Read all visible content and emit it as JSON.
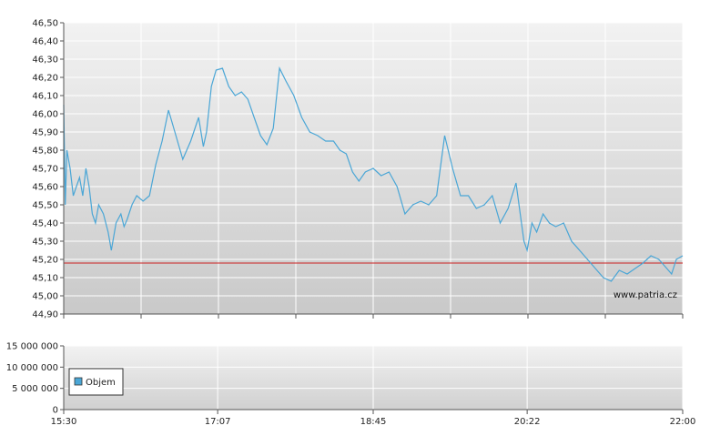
{
  "watermark": "www.patria.cz",
  "chart_data": [
    {
      "type": "line",
      "title": "",
      "xlabel": "",
      "ylabel": "",
      "ylim": [
        44.9,
        46.5
      ],
      "yticks": [
        "44,90",
        "45,00",
        "45,10",
        "45,20",
        "45,30",
        "45,40",
        "45,50",
        "45,60",
        "45,70",
        "45,80",
        "45,90",
        "46,00",
        "46,10",
        "46,20",
        "46,30",
        "46,40",
        "46,50"
      ],
      "xlim": [
        "15:30",
        "22:00"
      ],
      "grid": true,
      "line_color": "#4aa6d6",
      "reference_line": {
        "value": 45.18,
        "color": "#cc2222"
      },
      "series": [
        {
          "x": [
            "15:30",
            "15:31",
            "15:32",
            "15:34",
            "15:36",
            "15:38",
            "15:40",
            "15:42",
            "15:44",
            "15:46",
            "15:48",
            "15:50",
            "15:52",
            "15:55",
            "15:58",
            "16:00",
            "16:03",
            "16:06",
            "16:08",
            "16:10",
            "16:13",
            "16:16",
            "16:20",
            "16:24",
            "16:28",
            "16:32",
            "16:36",
            "16:40",
            "16:45",
            "16:50",
            "16:55",
            "16:58",
            "17:00",
            "17:03",
            "17:06",
            "17:10",
            "17:14",
            "17:18",
            "17:22",
            "17:26",
            "17:30",
            "17:34",
            "17:38",
            "17:42",
            "17:46",
            "17:50",
            "17:55",
            "18:00",
            "18:05",
            "18:10",
            "18:15",
            "18:20",
            "18:24",
            "18:28",
            "18:32",
            "18:36",
            "18:40",
            "18:45",
            "18:50",
            "18:55",
            "19:00",
            "19:05",
            "19:10",
            "19:15",
            "19:20",
            "19:25",
            "19:30",
            "19:35",
            "19:40",
            "19:45",
            "19:50",
            "19:55",
            "20:00",
            "20:05",
            "20:10",
            "20:15",
            "20:20",
            "20:22",
            "20:25",
            "20:28",
            "20:32",
            "20:36",
            "20:40",
            "20:45",
            "20:50",
            "20:55",
            "21:00",
            "21:05",
            "21:10",
            "21:15",
            "21:20",
            "21:25",
            "21:30",
            "21:35",
            "21:40",
            "21:45",
            "21:50",
            "21:53",
            "21:56",
            "22:00"
          ],
          "values": [
            46.05,
            45.5,
            45.8,
            45.7,
            45.55,
            45.6,
            45.65,
            45.55,
            45.7,
            45.6,
            45.45,
            45.4,
            45.5,
            45.45,
            45.35,
            45.25,
            45.4,
            45.45,
            45.38,
            45.42,
            45.5,
            45.55,
            45.52,
            45.55,
            45.72,
            45.85,
            46.02,
            45.9,
            45.75,
            45.85,
            45.98,
            45.82,
            45.9,
            46.15,
            46.24,
            46.25,
            46.15,
            46.1,
            46.12,
            46.08,
            45.98,
            45.88,
            45.83,
            45.92,
            46.25,
            46.18,
            46.1,
            45.98,
            45.9,
            45.88,
            45.85,
            45.85,
            45.8,
            45.78,
            45.68,
            45.63,
            45.68,
            45.7,
            45.66,
            45.68,
            45.6,
            45.45,
            45.5,
            45.52,
            45.5,
            45.55,
            45.88,
            45.7,
            45.55,
            45.55,
            45.48,
            45.5,
            45.55,
            45.4,
            45.48,
            45.62,
            45.3,
            45.25,
            45.4,
            45.35,
            45.45,
            45.4,
            45.38,
            45.4,
            45.3,
            45.25,
            45.2,
            45.15,
            45.1,
            45.08,
            45.14,
            45.12,
            45.15,
            45.18,
            45.22,
            45.2,
            45.15,
            45.12,
            45.2,
            45.22
          ]
        }
      ]
    },
    {
      "type": "bar",
      "title": "",
      "xlabel": "",
      "ylabel": "",
      "ylim": [
        0,
        15000000
      ],
      "yticks": [
        "0",
        "5 000 000",
        "10 000 000",
        "15 000 000"
      ],
      "xticks": [
        "15:30",
        "17:07",
        "18:45",
        "20:22",
        "22:00"
      ],
      "grid": true,
      "legend": {
        "position": "left",
        "entries": [
          {
            "name": "Objem",
            "color": "#4aa6d6"
          }
        ]
      },
      "series": [
        {
          "name": "Objem",
          "values": []
        }
      ]
    }
  ]
}
